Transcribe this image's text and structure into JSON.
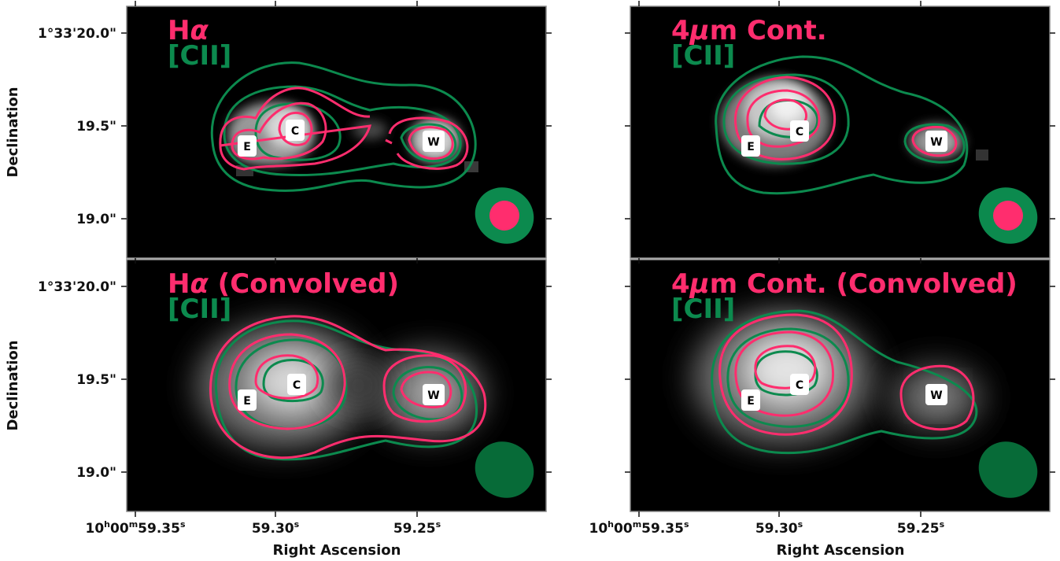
{
  "colors": {
    "halpha": "#ff2d6e",
    "cii": "#0c8a4e",
    "cii_beam_convolved": "#076b38",
    "background": "#000000",
    "frame": "#888888"
  },
  "axes": {
    "x_label": "Right Ascension",
    "y_label": "Declination",
    "x_ticks": [
      {
        "prefix": "10",
        "h": "h",
        "mid": "00",
        "m": "m",
        "sec": "59.35",
        "s": "s"
      },
      {
        "prefix": "",
        "h": "",
        "mid": "",
        "m": "",
        "sec": "59.30",
        "s": "s"
      },
      {
        "prefix": "",
        "h": "",
        "mid": "",
        "m": "",
        "sec": "59.25",
        "s": "s"
      }
    ],
    "y_ticks": [
      "1°33'20.0\"",
      "19.5\"",
      "19.0\""
    ]
  },
  "panels": [
    {
      "title_main": "H",
      "title_greek": "α",
      "title_suffix": "",
      "subtitle": "[CII]"
    },
    {
      "title_main": "4",
      "title_greek": "μ",
      "title_suffix": "m Cont.",
      "subtitle": "[CII]"
    },
    {
      "title_main": "H",
      "title_greek": "α",
      "title_suffix": " (Convolved)",
      "subtitle": "[CII]"
    },
    {
      "title_main": "4",
      "title_greek": "μ",
      "title_suffix": "m Cont. (Convolved)",
      "subtitle": "[CII]"
    }
  ],
  "markers": {
    "east": "E",
    "center": "C",
    "west": "W"
  }
}
